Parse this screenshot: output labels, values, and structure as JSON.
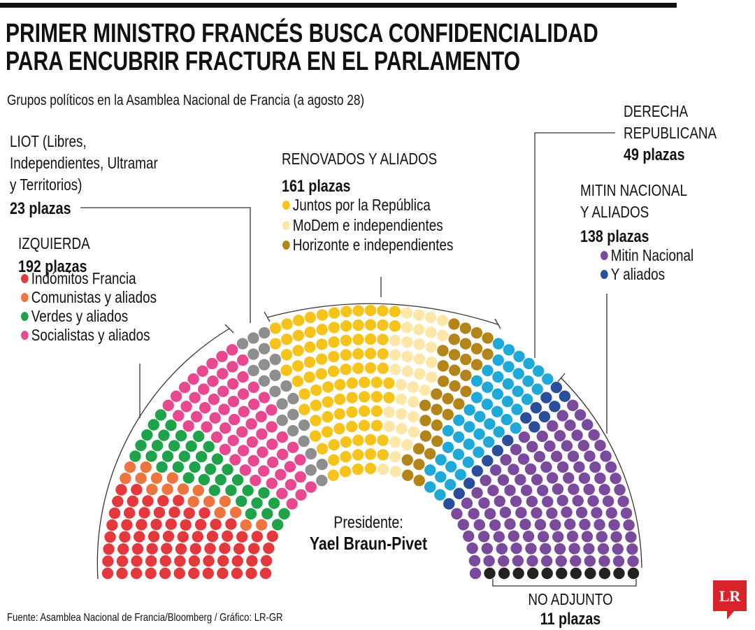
{
  "chart_data": {
    "type": "parliament",
    "title": "PRIMER MINISTRO FRANCÉS BUSCA CONFIDENCIALIDAD\nPARA ENCUBRIR FRACTURA EN EL PARLAMENTO",
    "subtitle": "Grupos políticos en la Asamblea Nacional de Francia (a agosto 28)",
    "center_label": "Presidente:",
    "center_name": "Yael Braun-Pivet",
    "source": "Fuente: Asamblea Nacional de Francia/Bloomberg / Gráfico: LR-GR",
    "logo": "LR",
    "groups": [
      {
        "name": "IZQUIERDA",
        "value": 192,
        "value_label": "192 plazas",
        "series": [
          {
            "name": "Indómitos Francia",
            "color": "#e5383d",
            "value": 71
          },
          {
            "name": "Comunistas y aliados",
            "color": "#ee7440",
            "value": 17
          },
          {
            "name": "Verdes y aliados",
            "color": "#1ea24a",
            "value": 38
          },
          {
            "name": "Socialistas y aliados",
            "color": "#e8488f",
            "value": 66
          }
        ]
      },
      {
        "name": "LIOT (Libres,\nIndependientes, Ultramar\ny Territorios)",
        "value": 23,
        "value_label": "23 plazas",
        "color": "#8e8e8e"
      },
      {
        "name": "RENOVADOS Y ALIADOS",
        "value": 161,
        "value_label": "161 plazas",
        "series": [
          {
            "name": "Juntos por la República",
            "color": "#f5c319",
            "value": 91
          },
          {
            "name": "MoDem e independientes",
            "color": "#fce6a8",
            "value": 36
          },
          {
            "name": "Horizonte e independientes",
            "color": "#b3841a",
            "value": 34
          }
        ]
      },
      {
        "name": "DERECHA\nREPUBLICANA",
        "value": 49,
        "value_label": "49 plazas",
        "color": "#1fa9d9"
      },
      {
        "name": "MITIN NACIONAL\nY ALIADOS",
        "value": 138,
        "value_label": "138 plazas",
        "series": [
          {
            "name": "Mitin Nacional",
            "color": "#7a4a9d",
            "value": 123
          },
          {
            "name": "Y aliados",
            "color": "#2a4e9b",
            "value": 15
          }
        ]
      },
      {
        "name": "NO ADJUNTO",
        "value": 11,
        "value_label": "11 plazas",
        "color": "#222222"
      }
    ]
  }
}
